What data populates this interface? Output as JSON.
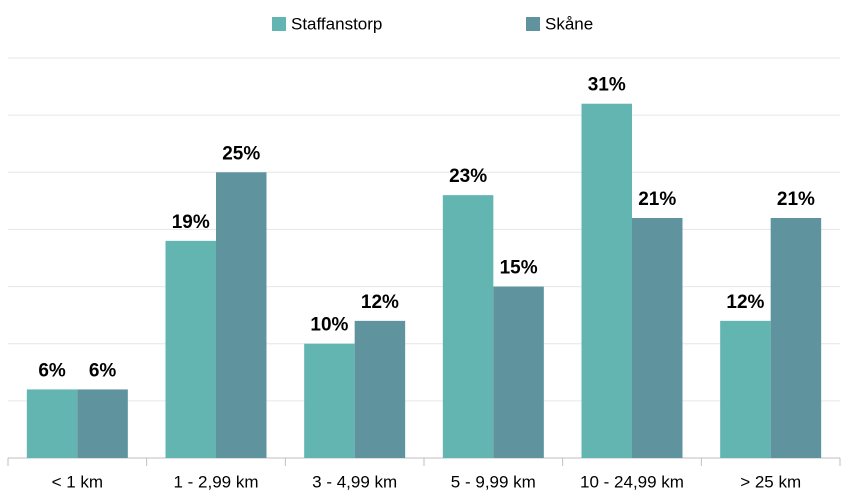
{
  "chart_data": {
    "type": "bar",
    "categories": [
      "< 1 km",
      "1 - 2,99 km",
      "3 - 4,99 km",
      "5 - 9,99 km",
      "10 - 24,99 km",
      "> 25 km"
    ],
    "series": [
      {
        "name": "Staffanstorp",
        "color": "#62b5b1",
        "values": [
          6,
          19,
          10,
          23,
          31,
          12
        ],
        "value_labels": [
          "6%",
          "19%",
          "10%",
          "23%",
          "31%",
          "12%"
        ]
      },
      {
        "name": "Skåne",
        "color": "#5f949e",
        "values": [
          6,
          25,
          12,
          15,
          21,
          21
        ],
        "value_labels": [
          "6%",
          "25%",
          "12%",
          "15%",
          "21%",
          "21%"
        ]
      }
    ],
    "ylim": [
      0,
      35
    ],
    "yticks": [
      0,
      5,
      10,
      15,
      20,
      25,
      30,
      35
    ],
    "grid": true,
    "legend": "top"
  }
}
